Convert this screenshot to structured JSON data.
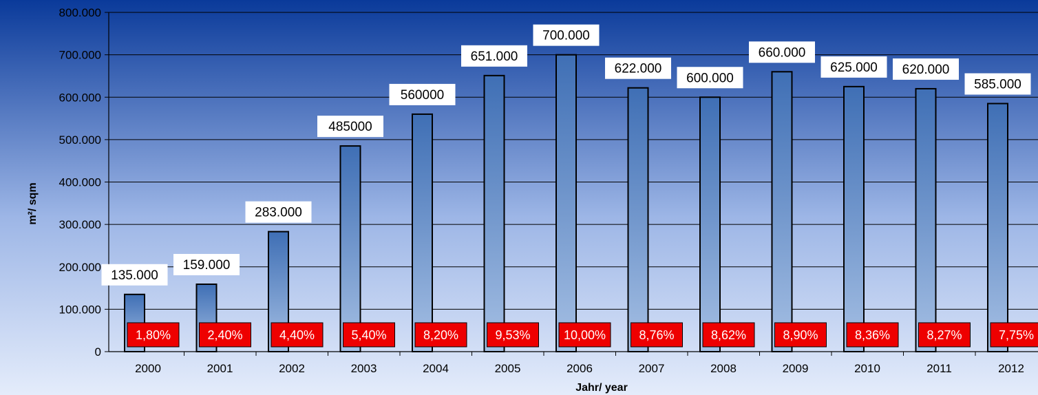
{
  "chart_data": {
    "type": "bar",
    "title": "",
    "xlabel": "Jahr/ year",
    "ylabel": "m²/ sqm",
    "ylim": [
      0,
      800000
    ],
    "yticks": [
      0,
      100000,
      200000,
      300000,
      400000,
      500000,
      600000,
      700000,
      800000
    ],
    "ytick_labels": [
      "0",
      "100.000",
      "200.000",
      "300.000",
      "400.000",
      "500.000",
      "600.000",
      "700.000",
      "800.000"
    ],
    "categories": [
      "2000",
      "2001",
      "2002",
      "2003",
      "2004",
      "2005",
      "2006",
      "2007",
      "2008",
      "2009",
      "2010",
      "2011",
      "2012"
    ],
    "values": [
      135000,
      159000,
      283000,
      485000,
      560000,
      651000,
      700000,
      622000,
      600000,
      660000,
      625000,
      620000,
      585000
    ],
    "value_labels": [
      "135.000",
      "159.000",
      "283.000",
      "485000",
      "560000",
      "651.000",
      "700.000",
      "622.000",
      "600.000",
      "660.000",
      "625.000",
      "620.000",
      "585.000"
    ],
    "percent_labels": [
      "1,80%",
      "2,40%",
      "4,40%",
      "5,40%",
      "8,20%",
      "9,53%",
      "10,00%",
      "8,76%",
      "8,62%",
      "8,90%",
      "8,36%",
      "8,27%",
      "7,75%"
    ],
    "grid": true,
    "legend": "none",
    "colors": {
      "plot_top": "#0a3a9a",
      "plot_bottom": "#e4ecfb",
      "bar_top": "#3f6fb5",
      "bar_bottom": "#a6c0e4",
      "percent_box": "#ee0000"
    }
  }
}
